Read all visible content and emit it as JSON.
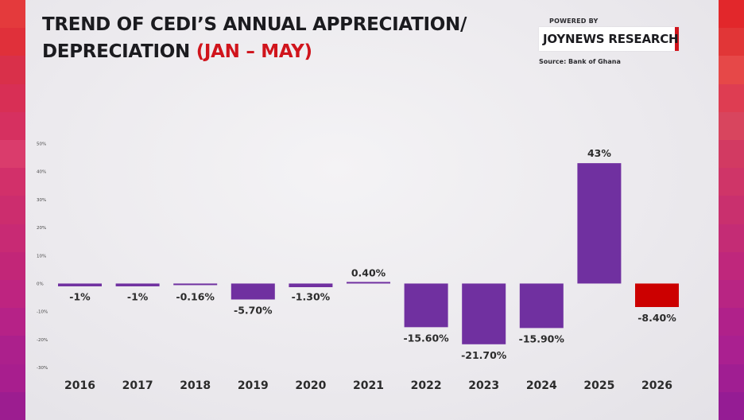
{
  "header": {
    "title_line1": "TREND OF CEDI’S ANNUAL APPRECIATION/",
    "title_line2": "DEPRECIATION",
    "title_accent": "(JAN – MAY)"
  },
  "branding": {
    "powered_by": "POWERED BY",
    "name": "JOYNEWS RESEARCH",
    "source": "Source: Bank of Ghana"
  },
  "colors": {
    "bar_default": "#7030a0",
    "bar_highlight": "#cc0000",
    "accent": "#d0141c",
    "side_left": [
      "#e43a3c",
      "#e0303a",
      "#d9304a",
      "#d82f55",
      "#d63060",
      "#da3c6c",
      "#d2306a",
      "#cc2d6e",
      "#c82a74",
      "#c22678",
      "#be2480",
      "#b62287",
      "#ac208c",
      "#a81e8e",
      "#9c1d90"
    ],
    "side_right": [
      "#e2272b",
      "#e13637",
      "#e64848",
      "#de3d52",
      "#d8455e",
      "#d23a62",
      "#cf3568",
      "#c9306e",
      "#c42c75",
      "#bf277c",
      "#b82583",
      "#b0218a",
      "#aa2090",
      "#a01e92",
      "#951c94"
    ]
  },
  "chart_data": {
    "type": "bar",
    "title": "TREND OF CEDI’S ANNUAL APPRECIATION/ DEPRECIATION (JAN – MAY)",
    "categories": [
      "2016",
      "2017",
      "2018",
      "2019",
      "2020",
      "2021",
      "2022",
      "2023",
      "2024",
      "2025",
      "2026"
    ],
    "values": [
      -1,
      -1,
      -0.16,
      -5.7,
      -1.3,
      0.4,
      -15.6,
      -21.7,
      -15.9,
      43,
      -8.4
    ],
    "data_labels": [
      "-1%",
      "-1%",
      "-0.16%",
      "-5.70%",
      "-1.30%",
      "0.40%",
      "-15.60%",
      "-21.70%",
      "-15.90%",
      "43%",
      "-8.40%"
    ],
    "highlight_index": 10,
    "ylim": [
      -30,
      50
    ],
    "yticks": [
      50,
      40,
      30,
      20,
      10,
      0,
      -10,
      -20,
      -30
    ],
    "ytick_labels": [
      "50%",
      "40%",
      "30%",
      "20%",
      "10%",
      "0%",
      "-10%",
      "-20%",
      "-30%"
    ],
    "xlabel": "",
    "ylabel": "",
    "grid": false,
    "legend": "none"
  }
}
